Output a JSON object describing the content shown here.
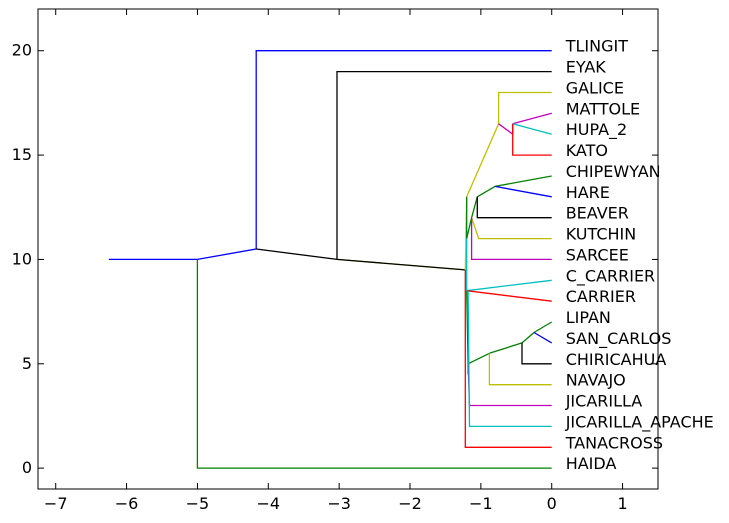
{
  "chart_data": {
    "type": "tree",
    "title": "",
    "xlabel": "",
    "ylabel": "",
    "xlim": [
      -7.25,
      1.5
    ],
    "ylim": [
      -1,
      22
    ],
    "xticks": [
      -7,
      -6,
      -5,
      -4,
      -3,
      -2,
      -1,
      0,
      1
    ],
    "yticks": [
      0,
      5,
      10,
      15,
      20
    ],
    "grid": false,
    "leaves": [
      {
        "name": "TLINGIT",
        "y": 20
      },
      {
        "name": "EYAK",
        "y": 19
      },
      {
        "name": "GALICE",
        "y": 18
      },
      {
        "name": "MATTOLE",
        "y": 17
      },
      {
        "name": "HUPA_2",
        "y": 16
      },
      {
        "name": "KATO",
        "y": 15
      },
      {
        "name": "CHIPEWYAN",
        "y": 14
      },
      {
        "name": "HARE",
        "y": 13
      },
      {
        "name": "BEAVER",
        "y": 12
      },
      {
        "name": "KUTCHIN",
        "y": 11
      },
      {
        "name": "SARCEE",
        "y": 10
      },
      {
        "name": "C_CARRIER",
        "y": 9
      },
      {
        "name": "CARRIER",
        "y": 8
      },
      {
        "name": "LIPAN",
        "y": 7
      },
      {
        "name": "SAN_CARLOS",
        "y": 6
      },
      {
        "name": "CHIRICAHUA",
        "y": 5
      },
      {
        "name": "NAVAJO",
        "y": 4
      },
      {
        "name": "JICARILLA",
        "y": 3
      },
      {
        "name": "JICARILLA_APACHE",
        "y": 2
      },
      {
        "name": "TANACROSS",
        "y": 1
      },
      {
        "name": "HAIDA",
        "y": 0
      }
    ],
    "segments": [
      {
        "color": "#0000ff",
        "points": [
          [
            -6.25,
            10
          ],
          [
            -5,
            10
          ]
        ]
      },
      {
        "color": "#008000",
        "points": [
          [
            -5,
            10
          ],
          [
            -5,
            0
          ],
          [
            0,
            0
          ]
        ]
      },
      {
        "color": "#0000ff",
        "points": [
          [
            -5,
            10
          ],
          [
            -4.17,
            10.5
          ]
        ]
      },
      {
        "color": "#0000ff",
        "points": [
          [
            -4.17,
            10.5
          ],
          [
            -4.17,
            20
          ],
          [
            0,
            20
          ]
        ]
      },
      {
        "color": "#000000",
        "points": [
          [
            -4.17,
            10.5
          ],
          [
            -3.03,
            10
          ]
        ]
      },
      {
        "color": "#000000",
        "points": [
          [
            -3.03,
            10
          ],
          [
            -3.03,
            19
          ],
          [
            0,
            19
          ]
        ]
      },
      {
        "color": "#bfbf00",
        "points": [
          [
            -3.03,
            10
          ],
          [
            -1.22,
            9.5
          ]
        ]
      },
      {
        "color": "#000000",
        "points": [
          [
            -3.03,
            10
          ],
          [
            -1.22,
            9.5
          ]
        ]
      },
      {
        "color": "#ff0000",
        "points": [
          [
            -1.22,
            9.5
          ],
          [
            -1.22,
            1
          ],
          [
            0,
            1
          ]
        ]
      },
      {
        "color": "#bfbf00",
        "points": [
          [
            -1.22,
            9.5
          ],
          [
            -1.2,
            13
          ]
        ]
      },
      {
        "color": "#008000",
        "points": [
          [
            -1.2,
            11
          ],
          [
            -1.2,
            13
          ]
        ]
      },
      {
        "color": "#bfbf00",
        "points": [
          [
            -1.2,
            13
          ],
          [
            -0.75,
            16.5
          ]
        ]
      },
      {
        "color": "#bfbf00",
        "points": [
          [
            -0.75,
            16.5
          ],
          [
            -0.75,
            18
          ],
          [
            0,
            18
          ]
        ]
      },
      {
        "color": "#bf00bf",
        "points": [
          [
            -0.75,
            16.5
          ],
          [
            -0.55,
            16
          ],
          [
            -0.55,
            16.5
          ]
        ]
      },
      {
        "color": "#bf00bf",
        "points": [
          [
            -0.55,
            16.5
          ],
          [
            0,
            17
          ]
        ]
      },
      {
        "color": "#00bfbf",
        "points": [
          [
            -0.55,
            16.5
          ],
          [
            0,
            16
          ]
        ]
      },
      {
        "color": "#ff0000",
        "points": [
          [
            -0.55,
            16.5
          ],
          [
            -0.55,
            15
          ],
          [
            0,
            15
          ]
        ]
      },
      {
        "color": "#008000",
        "points": [
          [
            -1.2,
            11
          ],
          [
            -1.13,
            12
          ],
          [
            -1.05,
            13
          ]
        ]
      },
      {
        "color": "#008000",
        "points": [
          [
            -1.05,
            13
          ],
          [
            -0.8,
            13.5
          ]
        ]
      },
      {
        "color": "#008000",
        "points": [
          [
            -0.8,
            13.5
          ],
          [
            0,
            14
          ]
        ]
      },
      {
        "color": "#0000ff",
        "points": [
          [
            -0.8,
            13.5
          ],
          [
            0,
            13
          ]
        ]
      },
      {
        "color": "#000000",
        "points": [
          [
            -1.05,
            13
          ],
          [
            -1.05,
            12
          ],
          [
            0,
            12
          ]
        ]
      },
      {
        "color": "#bfbf00",
        "points": [
          [
            -1.13,
            12
          ],
          [
            -1.03,
            11
          ],
          [
            0,
            11
          ]
        ]
      },
      {
        "color": "#bf00bf",
        "points": [
          [
            -1.13,
            12
          ],
          [
            -1.13,
            10
          ],
          [
            0,
            10
          ]
        ]
      },
      {
        "color": "#00bfbf",
        "points": [
          [
            -1.2,
            11
          ],
          [
            -1.2,
            8.5
          ]
        ]
      },
      {
        "color": "#00bfbf",
        "points": [
          [
            -1.2,
            8.5
          ],
          [
            0,
            9
          ]
        ]
      },
      {
        "color": "#ff0000",
        "points": [
          [
            -1.2,
            8.5
          ],
          [
            0,
            8
          ]
        ]
      },
      {
        "color": "#008000",
        "points": [
          [
            -1.2,
            8.5
          ],
          [
            -1.18,
            5
          ]
        ]
      },
      {
        "color": "#bf00bf",
        "points": [
          [
            -1.18,
            5
          ],
          [
            -1.18,
            4.5
          ]
        ]
      },
      {
        "color": "#008000",
        "points": [
          [
            -1.18,
            5
          ],
          [
            -0.88,
            5.5
          ]
        ]
      },
      {
        "color": "#008000",
        "points": [
          [
            -0.88,
            5.5
          ],
          [
            -0.42,
            6
          ]
        ]
      },
      {
        "color": "#008000",
        "points": [
          [
            -0.42,
            6
          ],
          [
            -0.25,
            6.5
          ]
        ]
      },
      {
        "color": "#008000",
        "points": [
          [
            -0.25,
            6.5
          ],
          [
            0,
            7
          ]
        ]
      },
      {
        "color": "#0000ff",
        "points": [
          [
            -0.25,
            6.5
          ],
          [
            0,
            6
          ]
        ]
      },
      {
        "color": "#000000",
        "points": [
          [
            -0.42,
            6
          ],
          [
            -0.42,
            5
          ],
          [
            0,
            5
          ]
        ]
      },
      {
        "color": "#bfbf00",
        "points": [
          [
            -0.88,
            5.5
          ],
          [
            -0.88,
            4
          ],
          [
            0,
            4
          ]
        ]
      },
      {
        "color": "#bf00bf",
        "points": [
          [
            -1.18,
            5
          ],
          [
            -1.16,
            3
          ],
          [
            0,
            3
          ]
        ]
      },
      {
        "color": "#00bfbf",
        "points": [
          [
            -1.18,
            8.5
          ],
          [
            -1.16,
            2
          ],
          [
            0,
            2
          ]
        ]
      }
    ]
  }
}
